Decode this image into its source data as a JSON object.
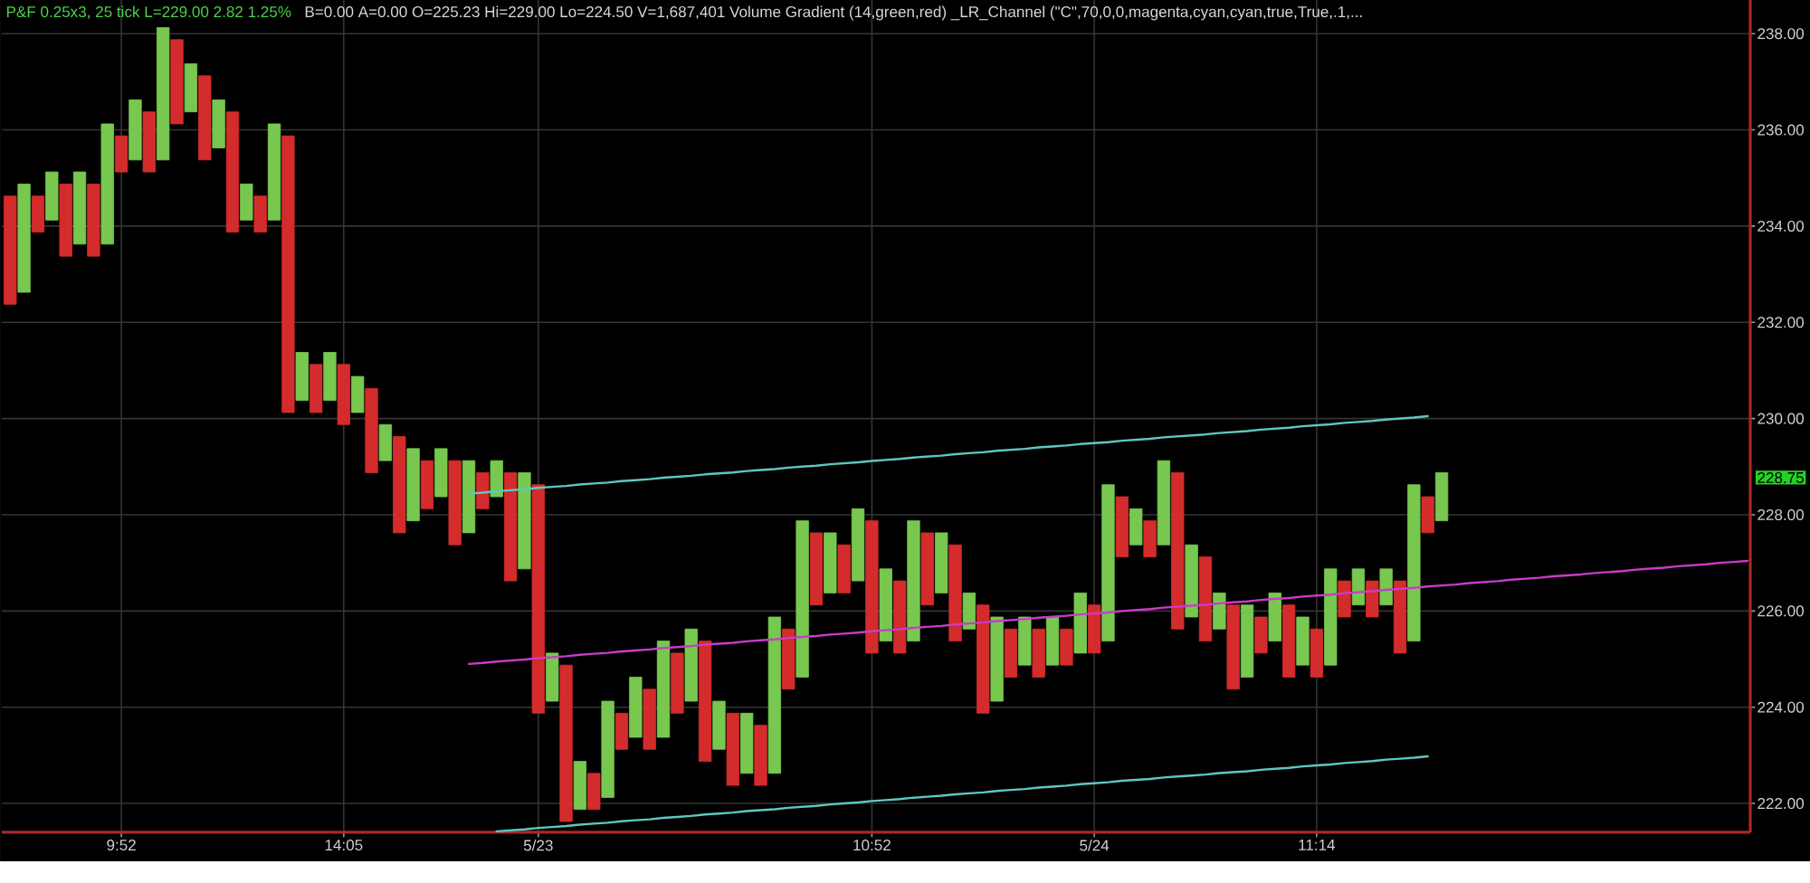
{
  "chart_data": {
    "type": "bar",
    "title": "P&F 0.25x3, 25 tick L=229.00 2.82 1.25%",
    "subtitle": "B=0.00 A=0.00 O=225.23 Hi=229.00 Lo=224.50 V=1,687,401 Volume Gradient (14,green,red) _LR_Channel (\"C\",70,0,0,magenta,cyan,cyan,true,True,.1,...",
    "categories": [
      null,
      null,
      null,
      null,
      null,
      null,
      null,
      null,
      "9:52",
      null,
      null,
      null,
      null,
      null,
      null,
      null,
      null,
      null,
      null,
      null,
      null,
      null,
      null,
      null,
      "14:05",
      null,
      null,
      null,
      null,
      null,
      null,
      null,
      null,
      null,
      null,
      null,
      null,
      null,
      "5/23",
      null,
      null,
      null,
      null,
      null,
      null,
      null,
      null,
      null,
      null,
      null,
      null,
      null,
      null,
      null,
      null,
      null,
      null,
      null,
      null,
      null,
      null,
      null,
      "10:52",
      null,
      null,
      null,
      null,
      null,
      null,
      null,
      null,
      null,
      null,
      null,
      null,
      null,
      null,
      null,
      "5/24",
      null,
      null,
      null,
      null,
      null,
      null,
      null,
      null,
      null,
      null,
      null,
      null,
      null,
      null,
      null,
      "11:14",
      null,
      null,
      null,
      null,
      null,
      null,
      null,
      null,
      null,
      null,
      null,
      null,
      null,
      null,
      null,
      null,
      null,
      null,
      null,
      null,
      null,
      null,
      null,
      null,
      null,
      null,
      null,
      null,
      null,
      null,
      null
    ],
    "ylim": [
      221.4,
      238.7
    ],
    "yticks": [
      {
        "value": 222,
        "label": "222.00"
      },
      {
        "value": 224,
        "label": "224.00"
      },
      {
        "value": 226,
        "label": "226.00"
      },
      {
        "value": 228,
        "label": "228.00"
      },
      {
        "value": 230,
        "label": "230.00"
      },
      {
        "value": 232,
        "label": "232.00"
      },
      {
        "value": 234,
        "label": "234.00"
      },
      {
        "value": 236,
        "label": "236.00"
      },
      {
        "value": 238,
        "label": "238.00"
      }
    ],
    "grid": true,
    "annotations": [
      "228.75"
    ],
    "series": [
      {
        "base": [
          232.375,
          232.625,
          233.875,
          234.125,
          233.375,
          233.625,
          233.375,
          233.625,
          235.125,
          235.375,
          235.125,
          235.375,
          236.125,
          236.375,
          235.375,
          235.625,
          233.875,
          234.125,
          233.875,
          234.125,
          230.125,
          230.375,
          230.125,
          230.375,
          229.875,
          230.125,
          228.875,
          229.125,
          227.625,
          227.875,
          228.125,
          228.375,
          227.375,
          227.625,
          228.125,
          228.375,
          226.625,
          226.875,
          223.875,
          224.125,
          221.625,
          221.875,
          221.875,
          222.125,
          223.125,
          223.375,
          223.125,
          223.375,
          223.875,
          224.125,
          222.875,
          223.125,
          222.375,
          222.625,
          222.375,
          222.625,
          224.375,
          224.625,
          226.125,
          226.375,
          226.375,
          226.625,
          225.125,
          225.375,
          225.125,
          225.375,
          226.125,
          226.375,
          225.375,
          225.625,
          223.875,
          224.125,
          224.625,
          224.875,
          224.625,
          224.875,
          224.875,
          225.125,
          225.125,
          225.375,
          227.125,
          227.375,
          227.125,
          227.375,
          225.625,
          225.875,
          225.375,
          225.625,
          224.375,
          224.625,
          225.125,
          225.375,
          224.625,
          224.875,
          224.625,
          224.875,
          225.875,
          226.125,
          225.875,
          226.125,
          225.125,
          225.375,
          227.625,
          227.875,
          null,
          null,
          null,
          null,
          null,
          null,
          null,
          null,
          null,
          null,
          null,
          null,
          null,
          null,
          null,
          null,
          null,
          null,
          null,
          null,
          null,
          null
        ],
        "values": [
          2.25,
          2.25,
          0.75,
          1.0,
          1.5,
          1.5,
          1.5,
          2.5,
          0.75,
          1.25,
          1.25,
          2.75,
          1.75,
          1.0,
          1.75,
          1.0,
          2.5,
          0.75,
          0.75,
          2.0,
          5.75,
          1.0,
          1.0,
          1.0,
          1.25,
          0.75,
          1.75,
          0.75,
          2.0,
          1.5,
          1.0,
          1.0,
          1.75,
          1.5,
          0.75,
          0.75,
          2.25,
          2.0,
          4.75,
          1.0,
          3.25,
          1.0,
          0.75,
          2.0,
          0.75,
          1.25,
          1.25,
          2.0,
          1.25,
          1.5,
          2.5,
          1.0,
          1.5,
          1.25,
          1.25,
          3.25,
          1.25,
          3.25,
          1.5,
          1.25,
          1.0,
          1.5,
          2.75,
          1.5,
          1.5,
          2.5,
          1.5,
          1.25,
          2.0,
          0.75,
          2.25,
          1.75,
          1.0,
          1.0,
          1.0,
          1.0,
          0.75,
          1.25,
          1.0,
          3.25,
          1.25,
          0.75,
          0.75,
          1.75,
          3.25,
          1.5,
          1.75,
          0.75,
          1.75,
          1.5,
          0.75,
          1.0,
          1.5,
          1.0,
          1.0,
          2.0,
          0.75,
          0.75,
          0.75,
          0.75,
          1.5,
          3.25,
          0.75,
          1.0,
          null,
          null,
          null,
          null,
          null,
          null,
          null,
          null,
          null,
          null,
          null,
          null,
          null,
          null,
          null,
          null,
          null,
          null,
          null,
          null,
          null,
          null
        ],
        "colors": [
          "#d42c2c",
          "#78c850",
          "#d42c2c",
          "#78c850",
          "#d42c2c",
          "#78c850",
          "#d42c2c",
          "#78c850",
          "#d42c2c",
          "#78c850",
          "#d42c2c",
          "#78c850",
          "#d42c2c",
          "#78c850",
          "#d42c2c",
          "#78c850",
          "#d42c2c",
          "#78c850",
          "#d42c2c",
          "#78c850",
          "#d42c2c",
          "#78c850",
          "#d42c2c",
          "#78c850",
          "#d42c2c",
          "#78c850",
          "#d42c2c",
          "#78c850",
          "#d42c2c",
          "#78c850",
          "#d42c2c",
          "#78c850",
          "#d42c2c",
          "#78c850",
          "#d42c2c",
          "#78c850",
          "#d42c2c",
          "#78c850",
          "#d42c2c",
          "#78c850",
          "#d42c2c",
          "#78c850",
          "#d42c2c",
          "#78c850",
          "#d42c2c",
          "#78c850",
          "#d42c2c",
          "#78c850",
          "#d42c2c",
          "#78c850",
          "#d42c2c",
          "#78c850",
          "#d42c2c",
          "#78c850",
          "#d42c2c",
          "#78c850",
          "#d42c2c",
          "#78c850",
          "#d42c2c",
          "#78c850",
          "#d42c2c",
          "#78c850",
          "#d42c2c",
          "#78c850",
          "#d42c2c",
          "#78c850",
          "#d42c2c",
          "#78c850",
          "#d42c2c",
          "#78c850",
          "#d42c2c",
          "#78c850",
          "#d42c2c",
          "#78c850",
          "#d42c2c",
          "#78c850",
          "#d42c2c",
          "#78c850",
          "#d42c2c",
          "#78c850",
          "#d42c2c",
          "#78c850",
          "#d42c2c",
          "#78c850",
          "#d42c2c",
          "#78c850",
          "#d42c2c",
          "#78c850",
          "#d42c2c",
          "#78c850",
          "#d42c2c",
          "#78c850",
          "#d42c2c",
          "#78c850",
          "#d42c2c",
          "#78c850",
          "#d42c2c",
          "#78c850",
          "#d42c2c",
          "#78c850",
          "#d42c2c",
          "#78c850",
          "#d42c2c",
          "#78c850",
          null,
          null,
          null,
          null,
          null,
          null,
          null,
          null,
          null,
          null,
          null,
          null,
          null,
          null,
          null,
          null,
          null,
          null,
          null,
          null,
          null,
          null
        ]
      },
      {
        "type": "line",
        "color": "#5ec8c0",
        "values": [
          null,
          null,
          null,
          null,
          null,
          null,
          null,
          null,
          null,
          null,
          null,
          null,
          null,
          null,
          null,
          null,
          null,
          null,
          null,
          null,
          null,
          null,
          null,
          null,
          null,
          null,
          null,
          null,
          null,
          null,
          null,
          null,
          null,
          228.44,
          228.46,
          228.49,
          228.51,
          228.53,
          228.56,
          228.58,
          228.6,
          228.63,
          228.65,
          228.67,
          228.7,
          228.72,
          228.74,
          228.77,
          228.79,
          228.81,
          228.84,
          228.86,
          228.88,
          228.91,
          228.93,
          228.95,
          228.98,
          229.0,
          229.02,
          229.05,
          229.07,
          229.09,
          229.12,
          229.14,
          229.16,
          229.19,
          229.21,
          229.23,
          229.26,
          229.28,
          229.3,
          229.33,
          229.35,
          229.37,
          229.4,
          229.42,
          229.44,
          229.47,
          229.49,
          229.51,
          229.54,
          229.56,
          229.58,
          229.61,
          229.63,
          229.65,
          229.67,
          229.7,
          229.72,
          229.74,
          229.77,
          229.79,
          229.81,
          229.84,
          229.86,
          229.88,
          229.91,
          229.93,
          229.95,
          229.98,
          230.0,
          230.02,
          230.05,
          null,
          null,
          null,
          null,
          null,
          null,
          null,
          null,
          null,
          null,
          null,
          null,
          null,
          null,
          null,
          null,
          null,
          null,
          null,
          null,
          null,
          null,
          null
        ]
      },
      {
        "type": "line",
        "color": "#c83cc8",
        "values": [
          null,
          null,
          null,
          null,
          null,
          null,
          null,
          null,
          null,
          null,
          null,
          null,
          null,
          null,
          null,
          null,
          null,
          null,
          null,
          null,
          null,
          null,
          null,
          null,
          null,
          null,
          null,
          null,
          null,
          null,
          null,
          null,
          null,
          224.9,
          224.92,
          224.95,
          224.97,
          224.99,
          225.02,
          225.04,
          225.06,
          225.09,
          225.11,
          225.13,
          225.16,
          225.18,
          225.2,
          225.23,
          225.25,
          225.27,
          225.3,
          225.32,
          225.34,
          225.37,
          225.39,
          225.41,
          225.44,
          225.46,
          225.48,
          225.51,
          225.53,
          225.55,
          225.58,
          225.6,
          225.62,
          225.65,
          225.67,
          225.69,
          225.72,
          225.74,
          225.76,
          225.79,
          225.81,
          225.83,
          225.86,
          225.88,
          225.9,
          225.93,
          225.95,
          225.97,
          226.0,
          226.02,
          226.04,
          226.07,
          226.09,
          226.11,
          226.13,
          226.16,
          226.18,
          226.2,
          226.23,
          226.25,
          226.27,
          226.3,
          226.32,
          226.34,
          226.37,
          226.39,
          226.41,
          226.44,
          226.46,
          226.48,
          226.51,
          226.53,
          226.55,
          226.58,
          226.6,
          226.62,
          226.65,
          226.67,
          226.69,
          226.72,
          226.74,
          226.76,
          226.79,
          226.81,
          226.83,
          226.86,
          226.88,
          226.9,
          226.93,
          226.95,
          226.97,
          227.0,
          227.02,
          227.04
        ]
      },
      {
        "type": "line",
        "color": "#5ec8c0",
        "values": [
          null,
          null,
          null,
          null,
          null,
          null,
          null,
          null,
          null,
          null,
          null,
          null,
          null,
          null,
          null,
          null,
          null,
          null,
          null,
          null,
          null,
          null,
          null,
          null,
          null,
          null,
          null,
          null,
          null,
          null,
          null,
          null,
          null,
          null,
          null,
          221.42,
          221.44,
          221.46,
          221.49,
          221.51,
          221.53,
          221.56,
          221.58,
          221.6,
          221.63,
          221.65,
          221.67,
          221.7,
          221.72,
          221.74,
          221.77,
          221.79,
          221.81,
          221.84,
          221.86,
          221.88,
          221.91,
          221.93,
          221.95,
          221.98,
          222.0,
          222.02,
          222.05,
          222.07,
          222.09,
          222.12,
          222.14,
          222.16,
          222.19,
          222.21,
          222.23,
          222.26,
          222.28,
          222.3,
          222.33,
          222.35,
          222.37,
          222.4,
          222.42,
          222.44,
          222.47,
          222.49,
          222.51,
          222.54,
          222.56,
          222.58,
          222.6,
          222.63,
          222.65,
          222.67,
          222.7,
          222.72,
          222.74,
          222.77,
          222.79,
          222.81,
          222.84,
          222.86,
          222.88,
          222.91,
          222.93,
          222.95,
          222.98,
          null,
          null,
          null,
          null,
          null,
          null,
          null,
          null,
          null,
          null,
          null,
          null,
          null,
          null,
          null,
          null,
          null,
          null,
          null,
          null,
          null,
          null,
          null
        ]
      }
    ]
  }
}
